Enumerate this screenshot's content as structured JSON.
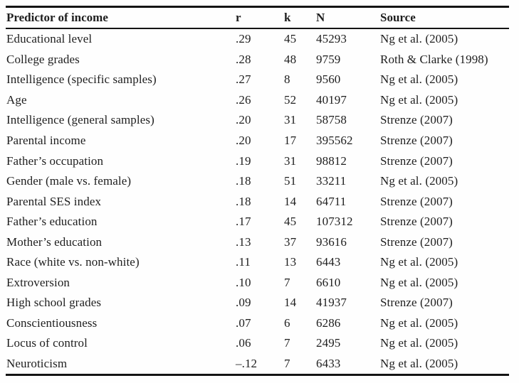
{
  "colors": {
    "background": "#fefefe",
    "text": "#1e1e1e",
    "rule": "#141414"
  },
  "table": {
    "columns": [
      "Predictor of income",
      "r",
      "k",
      "N",
      "Source"
    ],
    "column_keys": [
      "predictor",
      "r",
      "k",
      "n",
      "source"
    ],
    "rows": [
      {
        "predictor": "Educational level",
        "r": ".29",
        "k": "45",
        "n": "45293",
        "source": "Ng et al. (2005)"
      },
      {
        "predictor": "College grades",
        "r": ".28",
        "k": "48",
        "n": "9759",
        "source": "Roth & Clarke (1998)"
      },
      {
        "predictor": "Intelligence (specific samples)",
        "r": ".27",
        "k": "8",
        "n": "9560",
        "source": "Ng et al. (2005)"
      },
      {
        "predictor": "Age",
        "r": ".26",
        "k": "52",
        "n": "40197",
        "source": "Ng et al. (2005)"
      },
      {
        "predictor": "Intelligence (general samples)",
        "r": ".20",
        "k": "31",
        "n": "58758",
        "source": "Strenze (2007)"
      },
      {
        "predictor": "Parental income",
        "r": ".20",
        "k": "17",
        "n": "395562",
        "source": "Strenze (2007)"
      },
      {
        "predictor": "Father’s occupation",
        "r": ".19",
        "k": "31",
        "n": "98812",
        "source": "Strenze (2007)"
      },
      {
        "predictor": "Gender (male vs. female)",
        "r": ".18",
        "k": "51",
        "n": "33211",
        "source": "Ng et al. (2005)"
      },
      {
        "predictor": "Parental SES index",
        "r": ".18",
        "k": "14",
        "n": "64711",
        "source": "Strenze (2007)"
      },
      {
        "predictor": "Father’s education",
        "r": ".17",
        "k": "45",
        "n": "107312",
        "source": "Strenze (2007)"
      },
      {
        "predictor": "Mother’s education",
        "r": ".13",
        "k": "37",
        "n": "93616",
        "source": "Strenze (2007)"
      },
      {
        "predictor": "Race (white vs. non-white)",
        "r": ".11",
        "k": "13",
        "n": "6443",
        "source": "Ng et al. (2005)"
      },
      {
        "predictor": "Extroversion",
        "r": ".10",
        "k": "7",
        "n": "6610",
        "source": "Ng et al. (2005)"
      },
      {
        "predictor": "High school grades",
        "r": ".09",
        "k": "14",
        "n": "41937",
        "source": "Strenze (2007)"
      },
      {
        "predictor": "Conscientiousness",
        "r": ".07",
        "k": "6",
        "n": "6286",
        "source": "Ng et al. (2005)"
      },
      {
        "predictor": "Locus of control",
        "r": ".06",
        "k": "7",
        "n": "2495",
        "source": "Ng et al. (2005)"
      },
      {
        "predictor": "Neuroticism",
        "r": "–.12",
        "k": "7",
        "n": "6433",
        "source": "Ng et al. (2005)"
      }
    ]
  }
}
